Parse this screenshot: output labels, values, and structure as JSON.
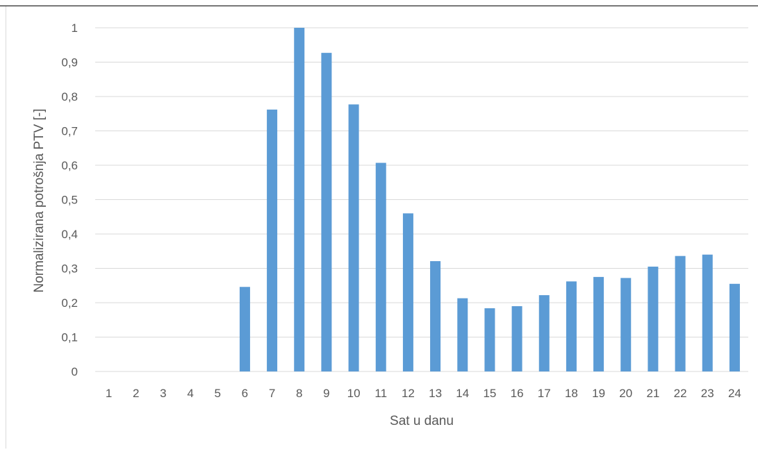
{
  "chart_data": {
    "type": "bar",
    "title": "",
    "xlabel": "Sat u danu",
    "ylabel": "Normalizirana potrošnja PTV [-]",
    "categories": [
      "1",
      "2",
      "3",
      "4",
      "5",
      "6",
      "7",
      "8",
      "9",
      "10",
      "11",
      "12",
      "13",
      "14",
      "15",
      "16",
      "17",
      "18",
      "19",
      "20",
      "21",
      "22",
      "23",
      "24"
    ],
    "values": [
      0,
      0,
      0,
      0,
      0,
      0.246,
      0.762,
      1.0,
      0.927,
      0.777,
      0.607,
      0.46,
      0.321,
      0.213,
      0.184,
      0.19,
      0.222,
      0.262,
      0.275,
      0.272,
      0.305,
      0.336,
      0.34,
      0.255
    ],
    "y_ticks": [
      "0",
      "0,1",
      "0,2",
      "0,3",
      "0,4",
      "0,5",
      "0,6",
      "0,7",
      "0,8",
      "0,9",
      "1"
    ],
    "ylim": [
      0,
      1
    ],
    "grid": true,
    "legend": "none",
    "colors": {
      "bar": "#5B9BD5",
      "grid": "#D9D9D9",
      "text": "#595959"
    }
  }
}
